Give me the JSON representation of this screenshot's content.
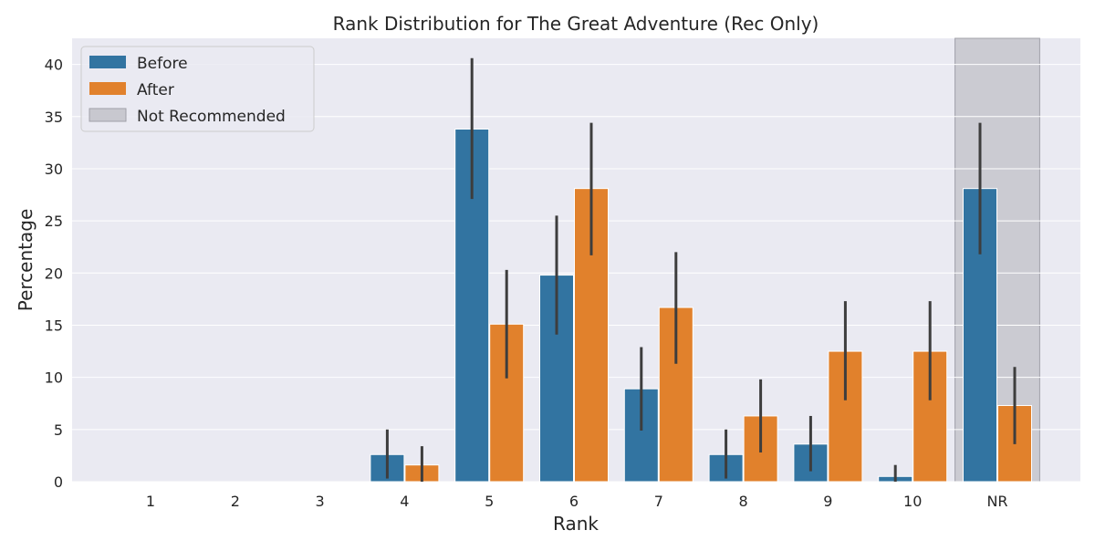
{
  "chart_data": {
    "type": "bar",
    "title": "Rank Distribution for The Great Adventure (Rec Only)",
    "xlabel": "Rank",
    "ylabel": "Percentage",
    "categories": [
      "1",
      "2",
      "3",
      "4",
      "5",
      "6",
      "7",
      "8",
      "9",
      "10",
      "NR"
    ],
    "ylim": [
      0,
      42.5
    ],
    "yticks": [
      0,
      5,
      10,
      15,
      20,
      25,
      30,
      35,
      40
    ],
    "grid": true,
    "legend_position": "top-left",
    "background_color": "#eaeaf2",
    "grid_color": "#ffffff",
    "series": [
      {
        "name": "Before",
        "color": "#3274a1",
        "values": [
          0,
          0,
          0,
          2.6,
          33.8,
          19.8,
          8.9,
          2.6,
          3.6,
          0.5,
          28.1
        ],
        "err_low": [
          0,
          0,
          0,
          0.3,
          27.1,
          14.1,
          4.9,
          0.3,
          1.0,
          0.0,
          21.8
        ],
        "err_high": [
          0,
          0,
          0,
          5.0,
          40.6,
          25.5,
          12.9,
          5.0,
          6.3,
          1.6,
          34.4
        ]
      },
      {
        "name": "After",
        "color": "#e1812c",
        "values": [
          0,
          0,
          0,
          1.6,
          15.1,
          28.1,
          16.7,
          6.3,
          12.5,
          12.5,
          7.3
        ],
        "err_low": [
          0,
          0,
          0,
          0.0,
          9.9,
          21.7,
          11.3,
          2.8,
          7.8,
          7.8,
          3.6
        ],
        "err_high": [
          0,
          0,
          0,
          3.4,
          20.3,
          34.4,
          22.0,
          9.8,
          17.3,
          17.3,
          11.0
        ]
      }
    ],
    "highlight": {
      "label": "Not Recommended",
      "category": "NR",
      "color": "#b0b0b8"
    }
  }
}
